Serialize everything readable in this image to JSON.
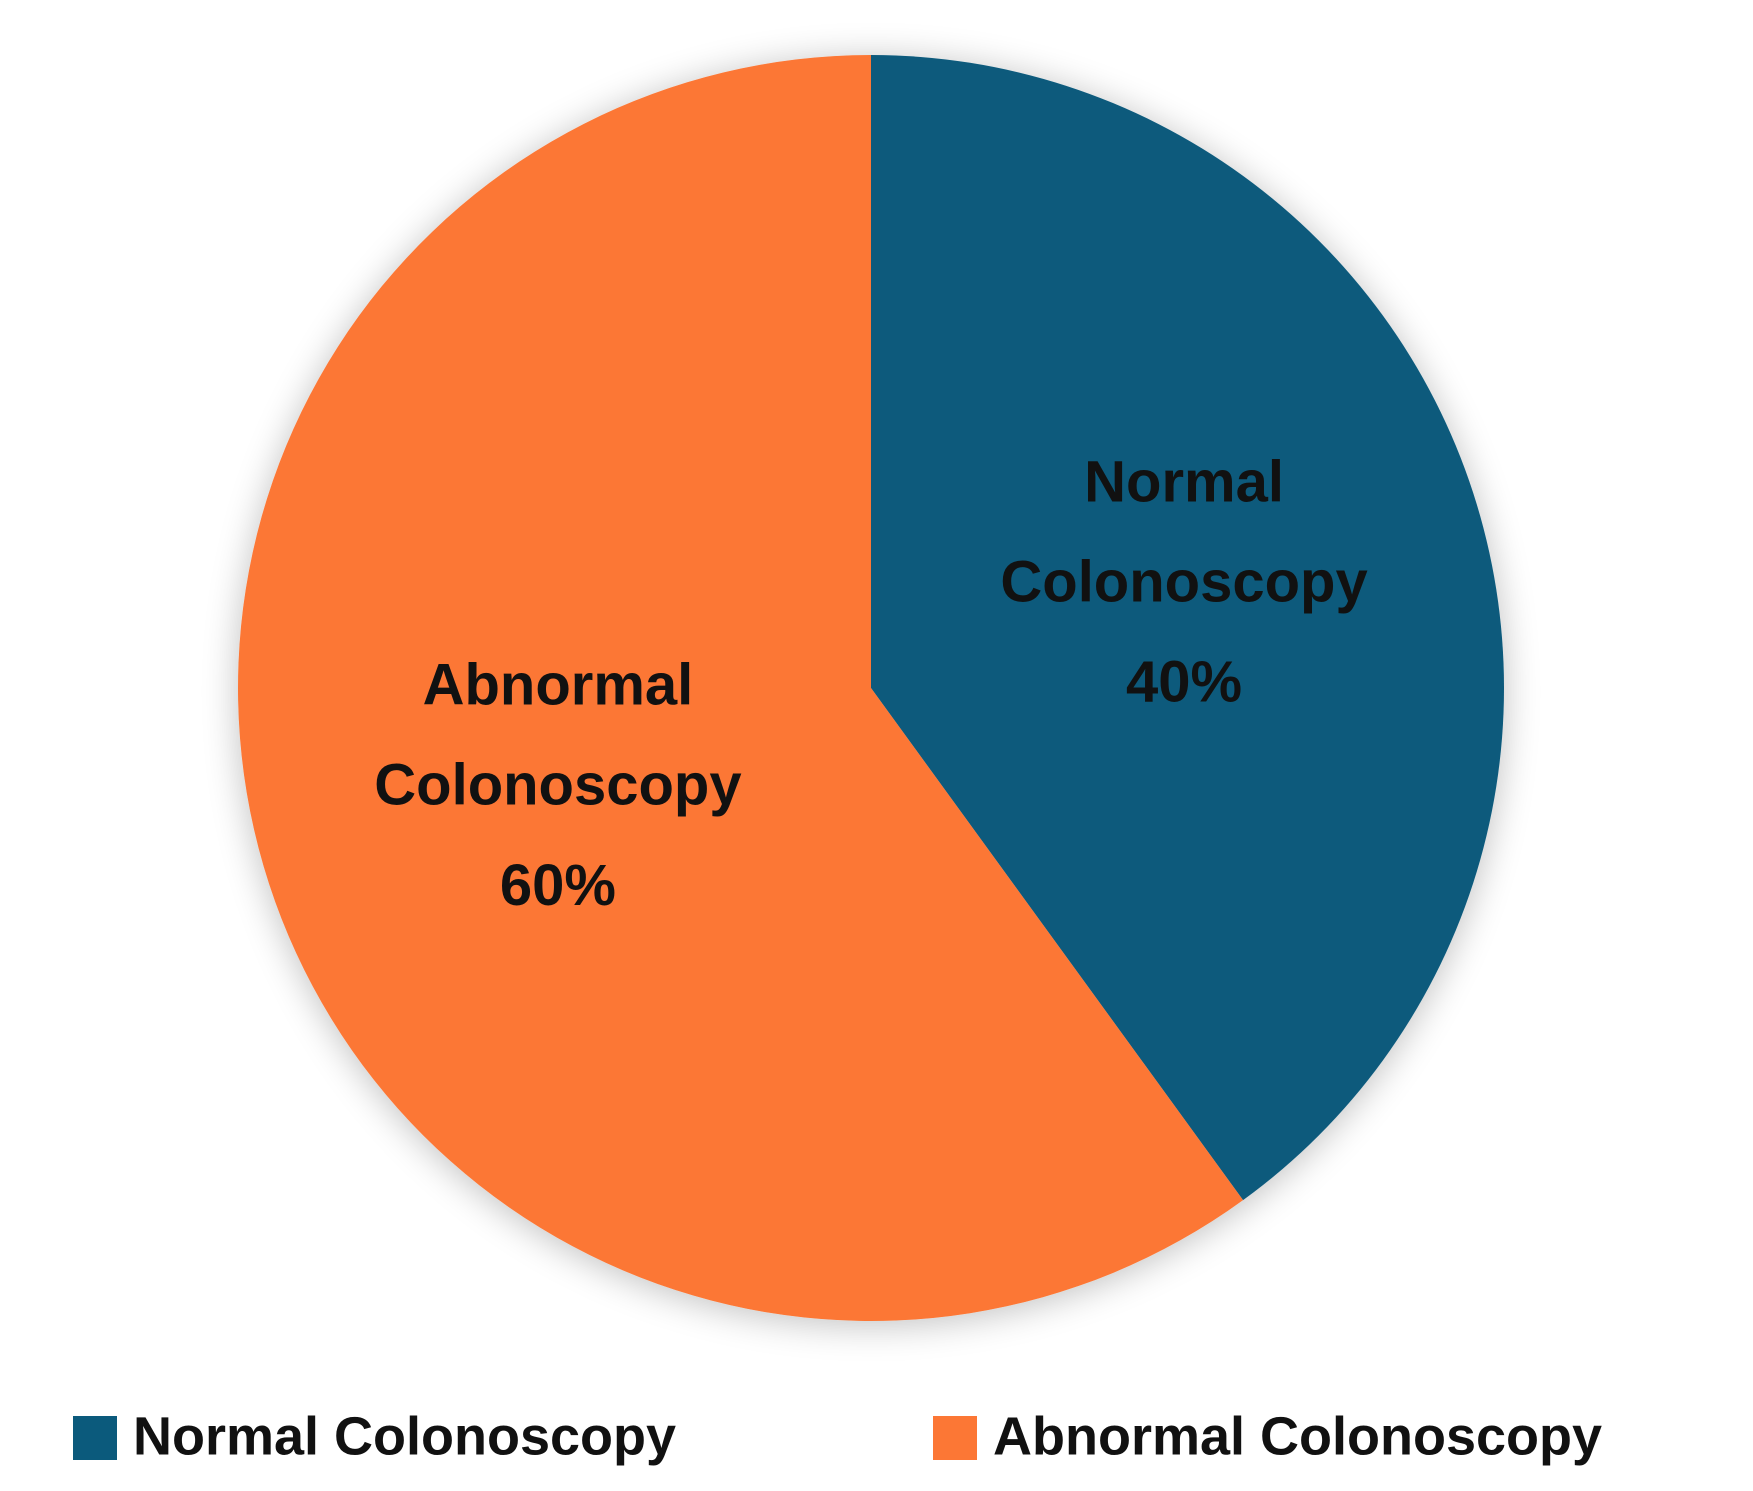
{
  "chart_data": {
    "type": "pie",
    "categories": [
      "Normal Colonoscopy",
      "Abnormal Colonoscopy"
    ],
    "values": [
      40,
      60
    ],
    "value_labels": [
      "40%",
      "60%"
    ],
    "colors": [
      "#0b5a7c",
      "#fc7735"
    ],
    "legend": "bottom"
  }
}
